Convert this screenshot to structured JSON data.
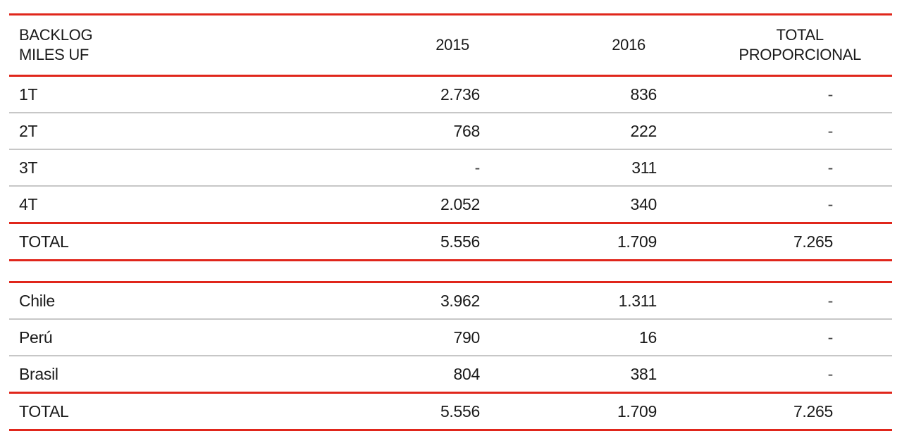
{
  "header": {
    "label_line1": "BACKLOG",
    "label_line2": "MILES UF",
    "col_2015": "2015",
    "col_2016": "2016",
    "total_line1": "TOTAL",
    "total_line2": "PROPORCIONAL"
  },
  "quarters": [
    {
      "label": "1T",
      "v2015": "2.736",
      "v2016": "836",
      "total": "-"
    },
    {
      "label": "2T",
      "v2015": "768",
      "v2016": "222",
      "total": "-"
    },
    {
      "label": "3T",
      "v2015": "-",
      "v2016": "311",
      "total": "-"
    },
    {
      "label": "4T",
      "v2015": "2.052",
      "v2016": "340",
      "total": "-"
    }
  ],
  "quarters_total": {
    "label": "TOTAL",
    "v2015": "5.556",
    "v2016": "1.709",
    "total": "7.265"
  },
  "countries": [
    {
      "label": "Chile",
      "v2015": "3.962",
      "v2016": "1.311",
      "total": "-"
    },
    {
      "label": "Perú",
      "v2015": "790",
      "v2016": "16",
      "total": "-"
    },
    {
      "label": "Brasil",
      "v2015": "804",
      "v2016": "381",
      "total": "-"
    }
  ],
  "countries_total": {
    "label": "TOTAL",
    "v2015": "5.556",
    "v2016": "1.709",
    "total": "7.265"
  }
}
